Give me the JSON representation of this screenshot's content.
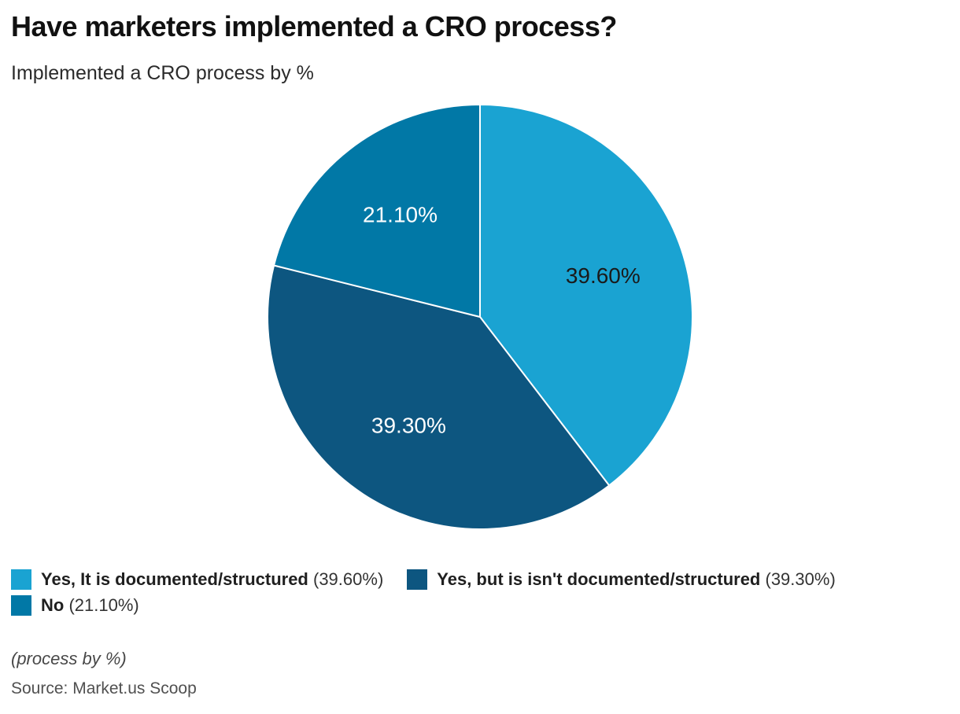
{
  "header": {
    "title": "Have marketers implemented a CRO process?",
    "subtitle": "Implemented a CRO process by %"
  },
  "chart_data": {
    "type": "pie",
    "title": "Have marketers implemented a CRO process?",
    "subtitle": "Implemented a CRO process by %",
    "start_angle_deg": 0,
    "direction": "clockwise",
    "legend_position": "bottom",
    "slice_border_color": "#ffffff",
    "slices": [
      {
        "name": "Yes, It is documented/structured",
        "value": 39.6,
        "pct_label": "39.60%",
        "legend_pct": "(39.60%)",
        "color": "#1AA3D2",
        "pct_label_color": "#1a1a1a"
      },
      {
        "name": "Yes, but is isn't documented/structured",
        "value": 39.3,
        "pct_label": "39.30%",
        "legend_pct": "(39.30%)",
        "color": "#0D5680",
        "pct_label_color": "#ffffff"
      },
      {
        "name": "No",
        "value": 21.1,
        "pct_label": "21.10%",
        "legend_pct": "(21.10%)",
        "color": "#0178A6",
        "pct_label_color": "#ffffff"
      }
    ]
  },
  "footer": {
    "note": "(process by %)",
    "source": "Source: Market.us Scoop"
  }
}
